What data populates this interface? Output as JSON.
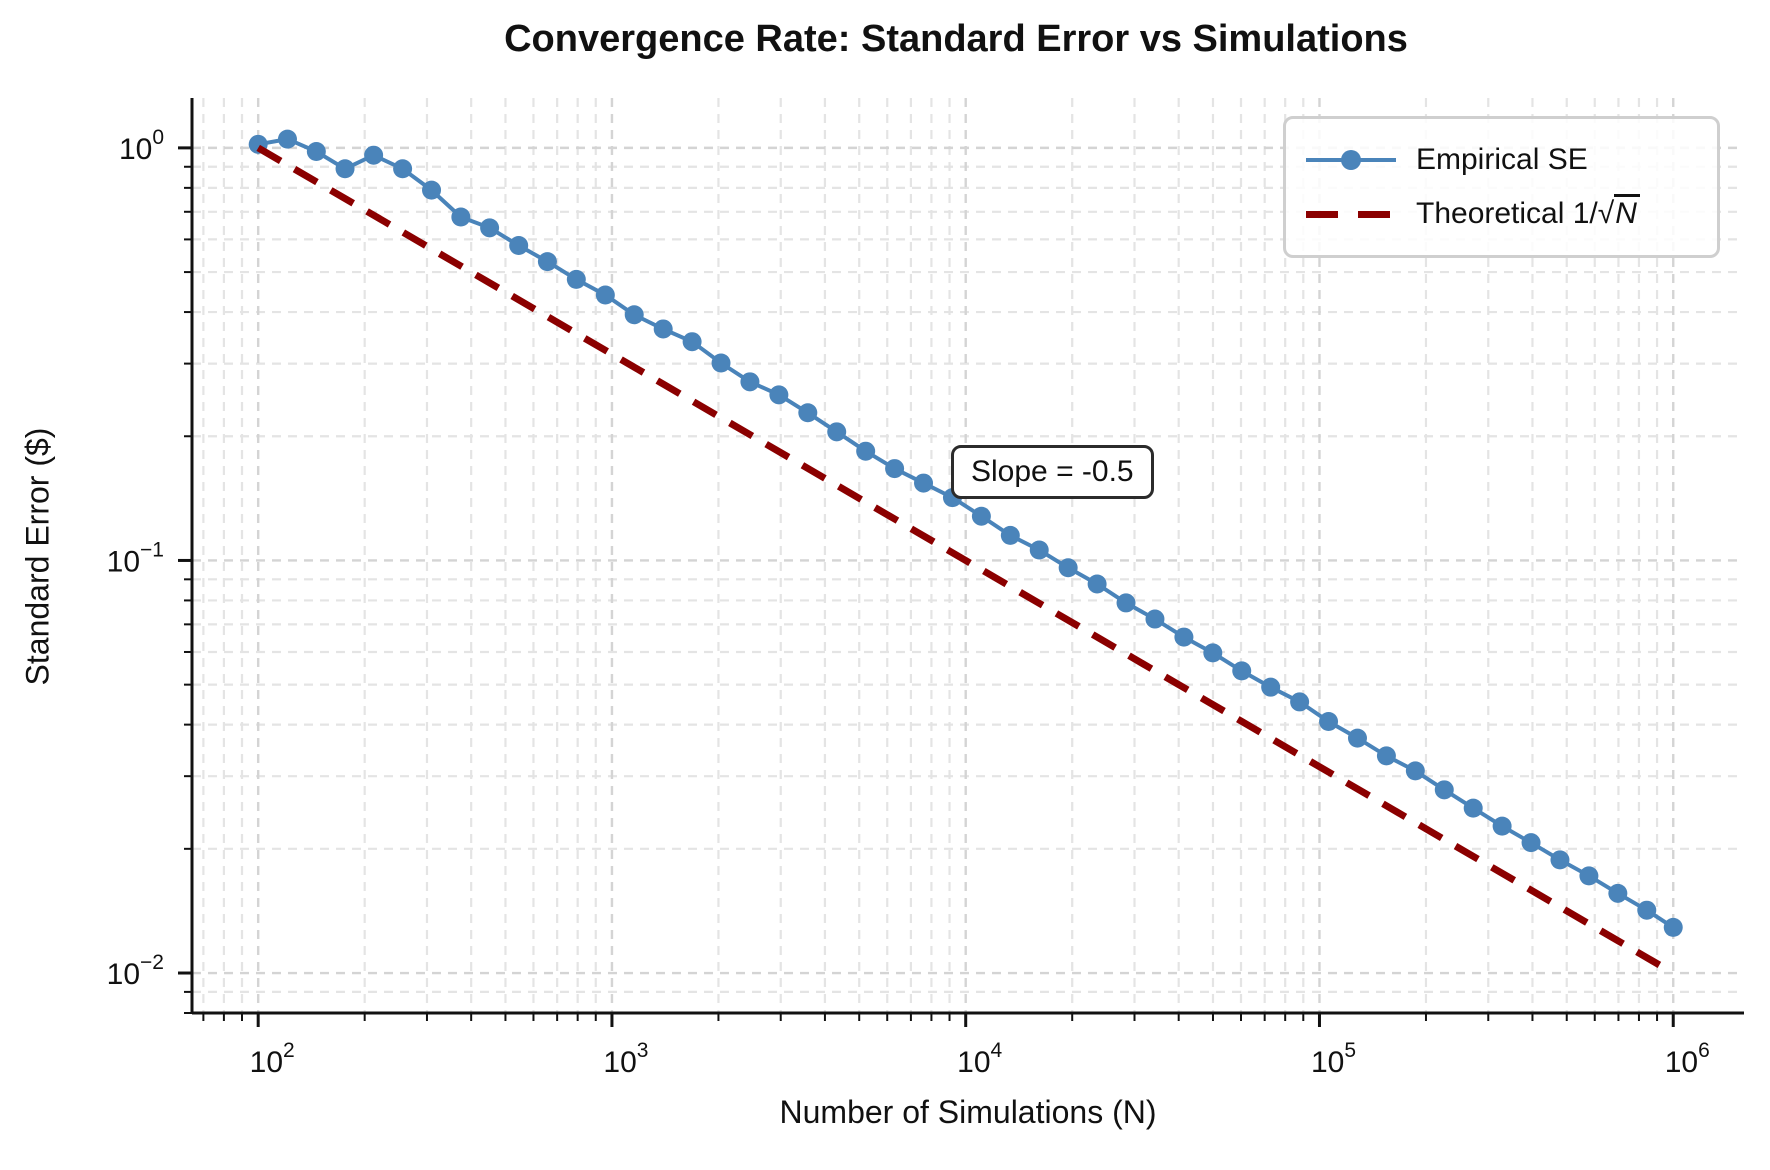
{
  "chart_data": {
    "type": "line",
    "title": "Convergence Rate: Standard Error vs Simulations",
    "xlabel": "Number of Simulations (N)",
    "ylabel": "Standard Error ($)",
    "x_scale": "log",
    "y_scale": "log",
    "xlim": [
      65,
      1585000
    ],
    "ylim": [
      0.008,
      1.321
    ],
    "x_tick_exponents": [
      2,
      3,
      4,
      5,
      6
    ],
    "y_tick_exponents": [
      0,
      -1,
      -2
    ],
    "grid": "major+minor dashed",
    "legend_position": "upper right",
    "annotation": {
      "text": "Slope = -0.5",
      "near_x": 9000,
      "near_y": 0.16
    },
    "series": [
      {
        "name": "Empirical SE",
        "color": "#4a84ba",
        "style": "solid",
        "line_width": 4,
        "markers": true,
        "x": [
          100,
          121,
          146,
          176,
          212,
          256,
          309,
          374,
          451,
          545,
          657,
          793,
          958,
          1156,
          1396,
          1685,
          2034,
          2455,
          2964,
          3578,
          4319,
          5215,
          6295,
          7599,
          9174,
          11074,
          13369,
          16137,
          19480,
          23520,
          28390,
          34276,
          41379,
          49942,
          60290,
          72790,
          87880,
          106082,
          128060,
          154600,
          186640,
          225300,
          272000,
          328320,
          396340,
          478450,
          577600,
          697300,
          841800,
          1000000
        ],
        "y": [
          1.02,
          1.05,
          0.98,
          0.89,
          0.96,
          0.89,
          0.79,
          0.68,
          0.64,
          0.58,
          0.53,
          0.48,
          0.44,
          0.394,
          0.364,
          0.339,
          0.301,
          0.271,
          0.252,
          0.228,
          0.205,
          0.184,
          0.167,
          0.154,
          0.142,
          0.128,
          0.115,
          0.106,
          0.096,
          0.0877,
          0.0789,
          0.0721,
          0.0652,
          0.0597,
          0.054,
          0.0493,
          0.0454,
          0.0407,
          0.0371,
          0.0336,
          0.0309,
          0.0278,
          0.0251,
          0.0227,
          0.0207,
          0.0188,
          0.0172,
          0.0156,
          0.0142,
          0.0129
        ]
      },
      {
        "name": "Theoretical 1/√N",
        "color": "#8b0000",
        "style": "dashed",
        "line_width": 7,
        "dash": "26 16",
        "markers": false,
        "x": [
          100,
          1000000
        ],
        "y": [
          1.0,
          0.01
        ]
      }
    ],
    "colors": {
      "empirical": "#4a84ba",
      "theoretical": "#8b0000",
      "grid_major": "#d4d4d4",
      "grid_minor": "#e4e4e4",
      "axis": "#111111"
    }
  }
}
